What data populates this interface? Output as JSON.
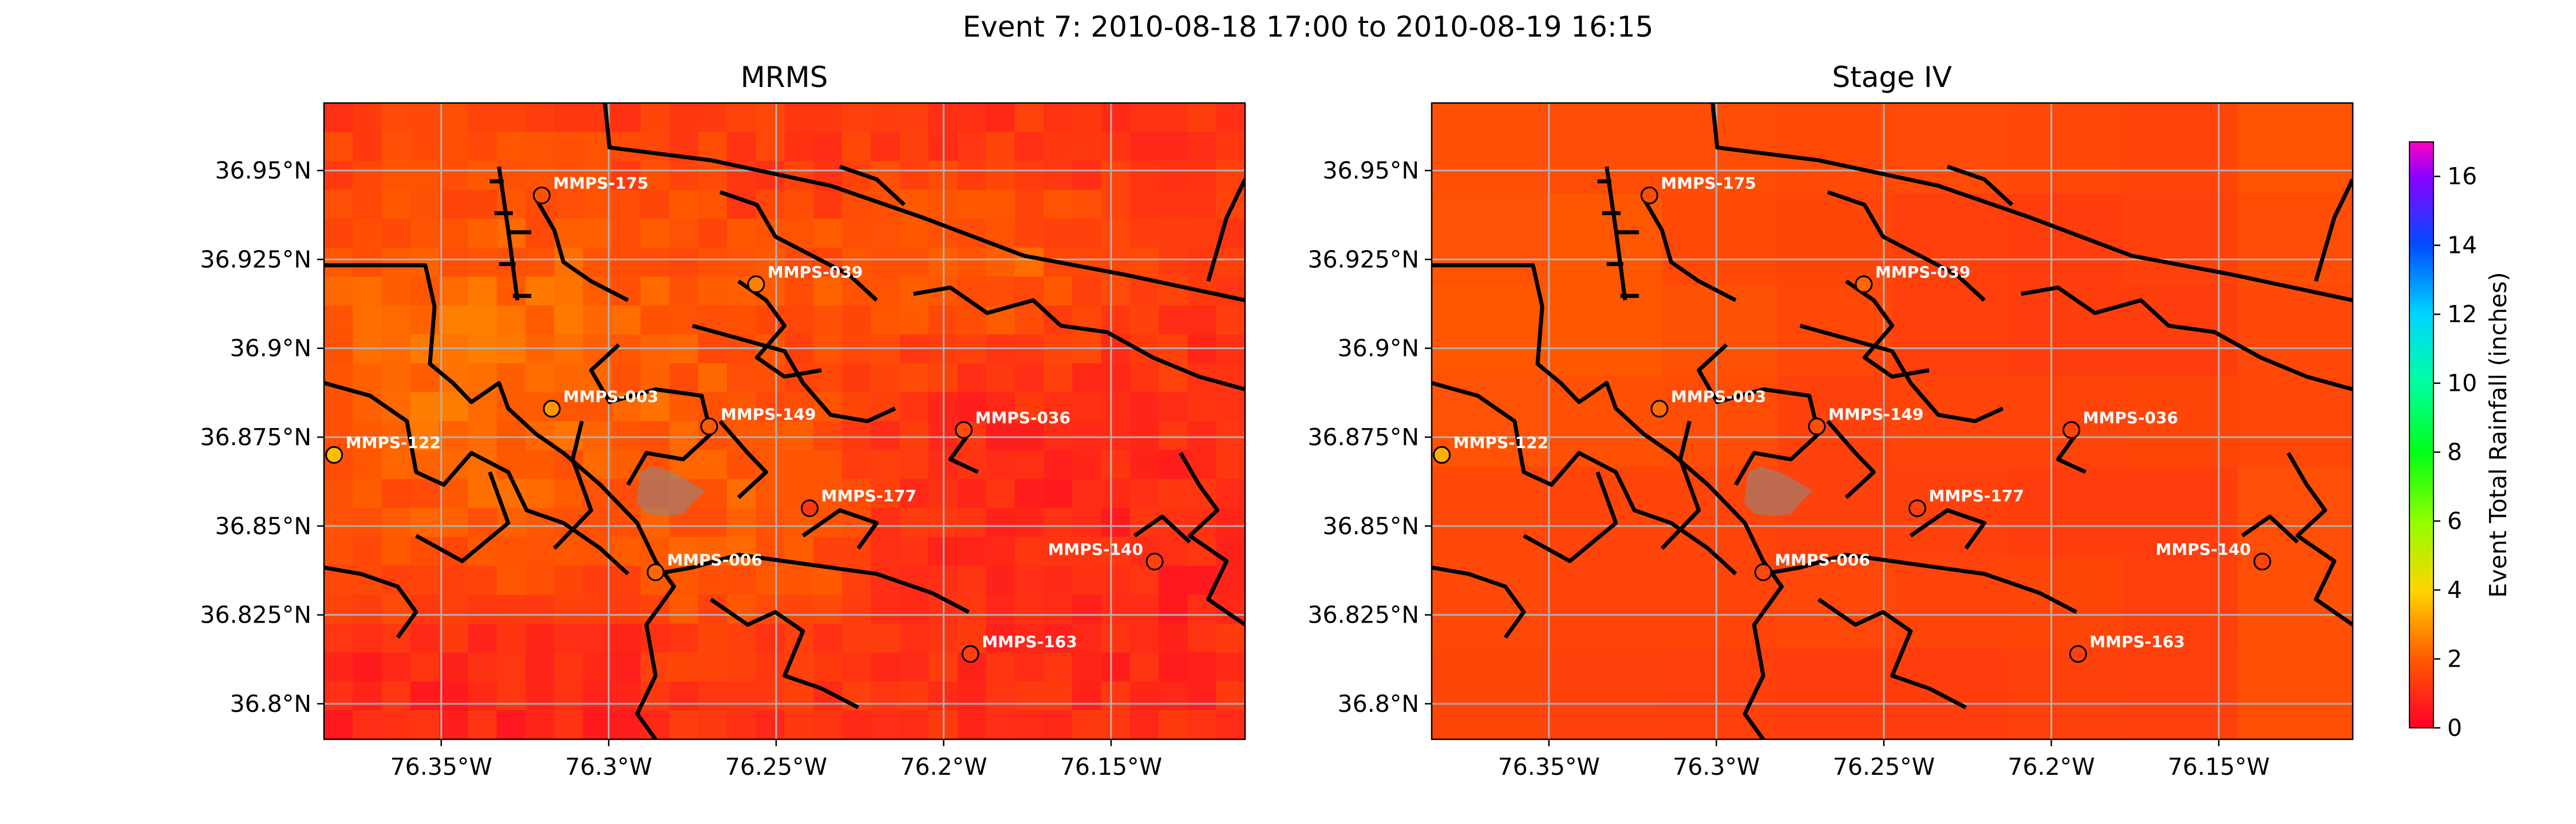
{
  "figure": {
    "title": "Event 7: 2010-08-18 17:00 to 2010-08-19 16:15"
  },
  "panels": [
    {
      "title": "MRMS",
      "field": "mrms",
      "lon_ticks": [
        "76.35°W",
        "76.3°W",
        "76.25°W",
        "76.2°W",
        "76.15°W"
      ],
      "lat_ticks": [
        "36.95°N",
        "36.925°N",
        "36.9°N",
        "36.875°N",
        "36.85°N",
        "36.825°N",
        "36.8°N"
      ]
    },
    {
      "title": "Stage IV",
      "field": "stage4",
      "lon_ticks": [
        "76.35°W",
        "76.3°W",
        "76.25°W",
        "76.2°W",
        "76.15°W"
      ],
      "lat_ticks": [
        "36.95°N",
        "36.925°N",
        "36.9°N",
        "36.875°N",
        "36.85°N",
        "36.825°N",
        "36.8°N"
      ]
    }
  ],
  "extent": {
    "lon": [
      -76.385,
      -76.11
    ],
    "lat": [
      36.79,
      36.969
    ]
  },
  "lon_values": [
    -76.35,
    -76.3,
    -76.25,
    -76.2,
    -76.15
  ],
  "lat_values": [
    36.95,
    36.925,
    36.9,
    36.875,
    36.85,
    36.825,
    36.8
  ],
  "colorbar": {
    "label": "Event Total Rainfall (inches)",
    "min": 0,
    "max": 17,
    "ticks": [
      "0",
      "2",
      "4",
      "6",
      "8",
      "10",
      "12",
      "14",
      "16"
    ],
    "colormap": "gist_rainbow_r"
  },
  "gauges": [
    {
      "name": "MMPS-175",
      "lon": -76.32,
      "lat": 36.943,
      "mrms": 1.8,
      "stage4": 1.7
    },
    {
      "name": "MMPS-039",
      "lon": -76.256,
      "lat": 36.918,
      "mrms": 2.6,
      "stage4": 2.2
    },
    {
      "name": "MMPS-003",
      "lon": -76.317,
      "lat": 36.883,
      "mrms": 3.0,
      "stage4": 2.3
    },
    {
      "name": "MMPS-149",
      "lon": -76.27,
      "lat": 36.878,
      "mrms": 2.0,
      "stage4": 1.7
    },
    {
      "name": "MMPS-036",
      "lon": -76.194,
      "lat": 36.877,
      "mrms": 1.7,
      "stage4": 1.5
    },
    {
      "name": "MMPS-122",
      "lon": -76.382,
      "lat": 36.87,
      "mrms": 3.6,
      "stage4": 3.4
    },
    {
      "name": "MMPS-177",
      "lon": -76.24,
      "lat": 36.855,
      "mrms": 1.2,
      "stage4": 1.4
    },
    {
      "name": "MMPS-140",
      "lon": -76.137,
      "lat": 36.84,
      "mrms": 1.5,
      "stage4": 1.5
    },
    {
      "name": "MMPS-006",
      "lon": -76.286,
      "lat": 36.837,
      "mrms": 2.2,
      "stage4": 1.6
    },
    {
      "name": "MMPS-163",
      "lon": -76.192,
      "lat": 36.814,
      "mrms": 1.4,
      "stage4": 1.4
    }
  ]
}
